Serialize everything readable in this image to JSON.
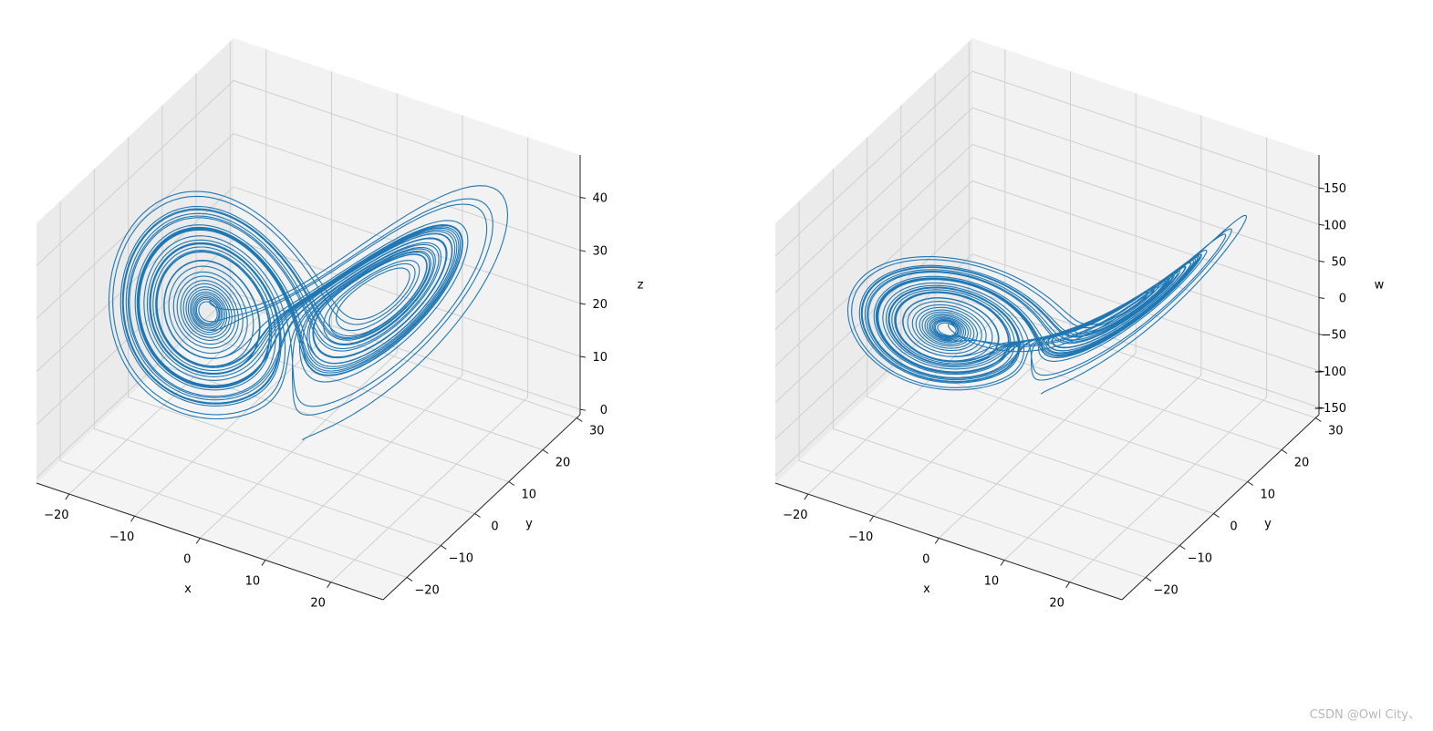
{
  "watermark": "CSDN @Owl City、",
  "colors": {
    "line": "#1f77b4",
    "pane_back": "#f2f2f2",
    "pane_side": "#ebebeb",
    "pane_floor": "#f4f4f4",
    "grid": "#cfcfcf",
    "axis": "#222222"
  },
  "chart_data": [
    {
      "type": "line3d",
      "title": "",
      "xlabel": "x",
      "ylabel": "y",
      "zlabel": "z",
      "xlim": [
        -25,
        28
      ],
      "ylim": [
        -27,
        31
      ],
      "zlim": [
        -1,
        48
      ],
      "xticks": [
        -20,
        -10,
        0,
        10,
        20
      ],
      "xtick_labels": [
        "−20",
        "−10",
        "0",
        "10",
        "20"
      ],
      "yticks": [
        -20,
        -10,
        0,
        10,
        20,
        30
      ],
      "ytick_labels": [
        "−20",
        "−10",
        "0",
        "10",
        "20",
        "30"
      ],
      "zticks": [
        0,
        10,
        20,
        30,
        40
      ],
      "ztick_labels": [
        "0",
        "10",
        "20",
        "30",
        "40"
      ],
      "grid": true,
      "series": [
        {
          "system": "chaotic double-scroll attractor",
          "initial_point": [
            1.0,
            1.0,
            1.0
          ],
          "x_range": [
            -20,
            20
          ],
          "y_range": [
            -26,
            28
          ],
          "z_range": [
            2,
            46
          ]
        }
      ]
    },
    {
      "type": "line3d",
      "title": "",
      "xlabel": "x",
      "ylabel": "y",
      "zlabel": "w",
      "xlim": [
        -25,
        28
      ],
      "ylim": [
        -27,
        31
      ],
      "zlim": [
        -160,
        195
      ],
      "xticks": [
        -20,
        -10,
        0,
        10,
        20
      ],
      "xtick_labels": [
        "−20",
        "−10",
        "0",
        "10",
        "20"
      ],
      "yticks": [
        -20,
        -10,
        0,
        10,
        20,
        30
      ],
      "ytick_labels": [
        "−20",
        "−10",
        "0",
        "10",
        "20",
        "30"
      ],
      "zticks": [
        -150,
        -100,
        -50,
        0,
        50,
        100,
        150
      ],
      "ztick_labels": [
        "−150",
        "−100",
        "−50",
        "0",
        "50",
        "100",
        "150"
      ],
      "grid": true,
      "series": [
        {
          "system": "chaotic double-scroll attractor (projection onto w)",
          "x_range": [
            -20,
            20
          ],
          "y_range": [
            -26,
            28
          ],
          "z_range": [
            -150,
            170
          ]
        }
      ]
    }
  ]
}
